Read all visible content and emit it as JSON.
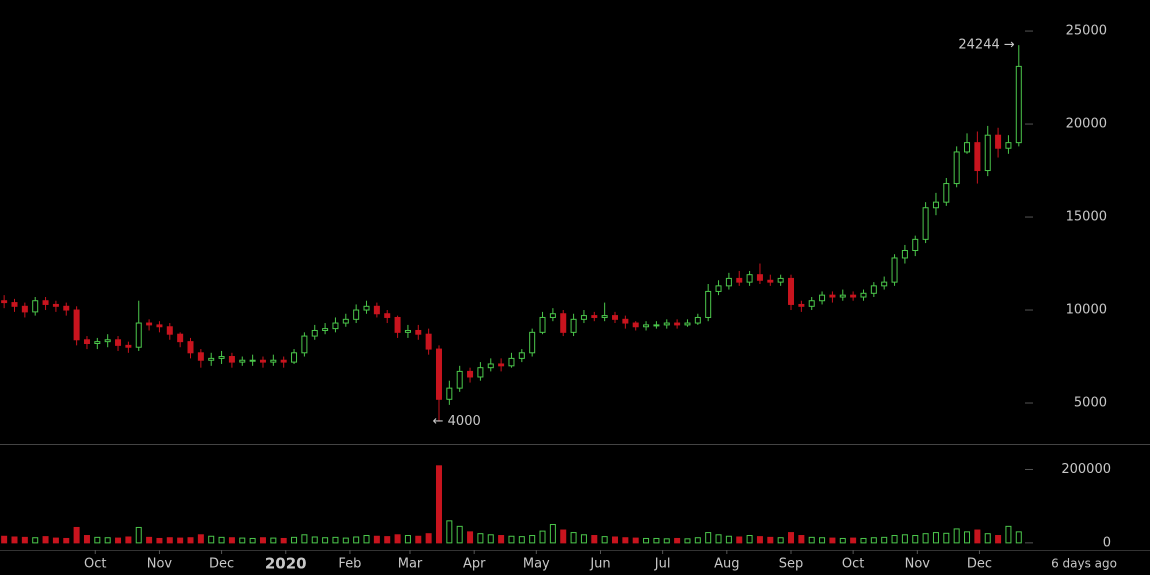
{
  "chart_data": {
    "type": "candlestick",
    "x": [
      -14,
      -9,
      -4,
      1,
      6,
      11,
      16,
      21,
      26,
      31,
      36,
      41,
      46,
      51,
      56,
      61,
      66,
      71,
      76,
      81,
      86,
      91,
      96,
      101,
      106,
      111,
      116,
      121,
      126,
      131,
      136,
      141,
      146,
      151,
      156,
      161,
      166,
      171,
      176,
      181,
      186,
      191,
      196,
      201,
      206,
      211,
      216,
      221,
      226,
      231,
      236,
      241,
      246,
      251,
      256,
      261,
      266,
      271,
      276,
      281,
      286,
      291,
      296,
      301,
      306,
      311,
      316,
      321,
      326,
      331,
      336,
      341,
      346,
      351,
      356,
      361,
      366,
      371,
      376,
      381,
      386,
      391,
      396,
      401,
      406,
      411,
      416,
      421,
      426,
      431,
      436,
      441,
      446,
      451,
      456,
      461,
      466,
      471,
      476
    ],
    "open": [
      10500,
      10400,
      10200,
      9900,
      10500,
      10300,
      10200,
      10000,
      8400,
      8200,
      8300,
      8400,
      8100,
      8000,
      9300,
      9200,
      9100,
      8700,
      8300,
      7700,
      7300,
      7400,
      7500,
      7200,
      7300,
      7300,
      7200,
      7300,
      7200,
      7700,
      8600,
      8900,
      9000,
      9300,
      9500,
      10000,
      10200,
      9800,
      9600,
      8800,
      8900,
      8700,
      7900,
      5200,
      5800,
      6700,
      6400,
      6900,
      7100,
      7000,
      7400,
      7700,
      8800,
      9600,
      9800,
      8800,
      9500,
      9700,
      9600,
      9700,
      9500,
      9300,
      9100,
      9200,
      9200,
      9300,
      9200,
      9300,
      9600,
      11000,
      11300,
      11700,
      11500,
      11900,
      11600,
      11500,
      11700,
      10300,
      10200,
      10500,
      10800,
      10700,
      10800,
      10700,
      10900,
      11300,
      11500,
      12800,
      13200,
      13800,
      15500,
      15800,
      16800,
      18500,
      19000,
      17500,
      19400,
      18700,
      19000
    ],
    "high": [
      10800,
      10600,
      10400,
      10700,
      10700,
      10500,
      10400,
      10200,
      8600,
      8500,
      8700,
      8600,
      8300,
      10500,
      9500,
      9400,
      9300,
      8800,
      8500,
      7900,
      7700,
      7800,
      7700,
      7500,
      7600,
      7500,
      7600,
      7500,
      7900,
      8800,
      9200,
      9300,
      9600,
      9800,
      10300,
      10500,
      10400,
      10000,
      9700,
      9200,
      9200,
      9000,
      8100,
      6200,
      7000,
      6900,
      7200,
      7400,
      7400,
      7700,
      7900,
      9000,
      9900,
      10100,
      10000,
      9800,
      10000,
      9900,
      10400,
      9900,
      9700,
      9400,
      9400,
      9400,
      9500,
      9500,
      9500,
      9800,
      11400,
      11600,
      12000,
      12100,
      12100,
      12500,
      11900,
      11900,
      11900,
      10500,
      10700,
      11000,
      11000,
      11100,
      11000,
      11100,
      11500,
      11800,
      13000,
      13500,
      14000,
      15800,
      16300,
      17100,
      18800,
      19500,
      19600,
      19900,
      19800,
      19400,
      24244
    ],
    "low": [
      10100,
      9900,
      9600,
      9700,
      10000,
      9900,
      9700,
      8100,
      7900,
      7900,
      8000,
      7800,
      7700,
      7800,
      8900,
      8800,
      8400,
      8000,
      7400,
      6900,
      7000,
      7100,
      6900,
      7000,
      7000,
      6900,
      7000,
      6900,
      7100,
      7500,
      8400,
      8700,
      8800,
      9100,
      9300,
      9800,
      9600,
      9300,
      8500,
      8500,
      8400,
      7600,
      4000,
      4900,
      5600,
      6100,
      6200,
      6700,
      6700,
      6900,
      7200,
      7500,
      8700,
      9400,
      8600,
      8600,
      9300,
      9400,
      9400,
      9300,
      9000,
      8900,
      8900,
      9000,
      9000,
      9000,
      9100,
      9200,
      9400,
      10800,
      11100,
      11300,
      11300,
      11400,
      11300,
      11300,
      10000,
      9900,
      10000,
      10300,
      10400,
      10500,
      10500,
      10500,
      10700,
      11100,
      11300,
      12500,
      12900,
      13600,
      15100,
      15600,
      16600,
      18400,
      16800,
      17200,
      18200,
      18400,
      18800
    ],
    "close": [
      10400,
      10200,
      9900,
      10500,
      10300,
      10200,
      10000,
      8400,
      8200,
      8300,
      8400,
      8100,
      8000,
      9300,
      9200,
      9100,
      8700,
      8300,
      7700,
      7300,
      7400,
      7500,
      7200,
      7300,
      7300,
      7200,
      7300,
      7200,
      7700,
      8600,
      8900,
      9000,
      9300,
      9500,
      10000,
      10200,
      9800,
      9600,
      8800,
      8900,
      8700,
      7900,
      5200,
      5800,
      6700,
      6400,
      6900,
      7100,
      7000,
      7400,
      7700,
      8800,
      9600,
      9800,
      8800,
      9500,
      9700,
      9600,
      9700,
      9500,
      9300,
      9100,
      9200,
      9200,
      9300,
      9200,
      9300,
      9600,
      11000,
      11300,
      11700,
      11500,
      11900,
      11600,
      11500,
      11700,
      10300,
      10200,
      10500,
      10800,
      10700,
      10800,
      10700,
      10900,
      11300,
      11500,
      12800,
      13200,
      13800,
      15500,
      15800,
      16800,
      18500,
      19000,
      17500,
      19400,
      18700,
      19000,
      23100
    ],
    "volume": [
      18000,
      16000,
      15000,
      14000,
      17000,
      13000,
      12000,
      42000,
      20000,
      15000,
      14000,
      13000,
      16000,
      42000,
      15000,
      12000,
      14000,
      13000,
      14000,
      22000,
      18000,
      15000,
      14000,
      13000,
      12000,
      14000,
      13000,
      12000,
      15000,
      22000,
      16000,
      14000,
      15000,
      13000,
      16000,
      20000,
      18000,
      17000,
      22000,
      20000,
      18000,
      25000,
      210000,
      60000,
      45000,
      30000,
      25000,
      22000,
      20000,
      18000,
      17000,
      20000,
      32000,
      50000,
      35000,
      28000,
      22000,
      20000,
      17000,
      16000,
      14000,
      13000,
      12000,
      12000,
      11000,
      12000,
      11000,
      14000,
      28000,
      22000,
      18000,
      16000,
      20000,
      17000,
      15000,
      14000,
      28000,
      20000,
      15000,
      14000,
      13000,
      12000,
      13000,
      12000,
      14000,
      15000,
      20000,
      22000,
      20000,
      25000,
      28000,
      26000,
      38000,
      30000,
      35000,
      25000,
      20000,
      45000,
      30000
    ],
    "up_color": "#4cc84c",
    "down_color": "#c8141e",
    "xlim": [
      -16,
      479
    ],
    "xticks": [
      {
        "value": 30,
        "label": "Oct"
      },
      {
        "value": 61,
        "label": "Nov"
      },
      {
        "value": 91,
        "label": "Dec"
      },
      {
        "value": 122,
        "label": "2020",
        "bold": true
      },
      {
        "value": 153,
        "label": "Feb"
      },
      {
        "value": 182,
        "label": "Mar"
      },
      {
        "value": 213,
        "label": "Apr"
      },
      {
        "value": 243,
        "label": "May"
      },
      {
        "value": 274,
        "label": "Jun"
      },
      {
        "value": 304,
        "label": "Jul"
      },
      {
        "value": 335,
        "label": "Aug"
      },
      {
        "value": 366,
        "label": "Sep"
      },
      {
        "value": 396,
        "label": "Oct"
      },
      {
        "value": 427,
        "label": "Nov"
      },
      {
        "value": 457,
        "label": "Dec"
      }
    ],
    "ylim": [
      2850,
      26670
    ],
    "yticks": [
      5000,
      10000,
      15000,
      20000,
      25000
    ],
    "volume_ylim": [
      -14000,
      264000
    ],
    "volume_yticks": [
      0,
      200000
    ],
    "annotations": [
      {
        "label": "24244 →",
        "value": 24244,
        "x": 476,
        "side": "left"
      },
      {
        "label": "← 4000",
        "value": 4000,
        "x": 191,
        "side": "right"
      }
    ],
    "x_end_label": "6 days ago"
  }
}
